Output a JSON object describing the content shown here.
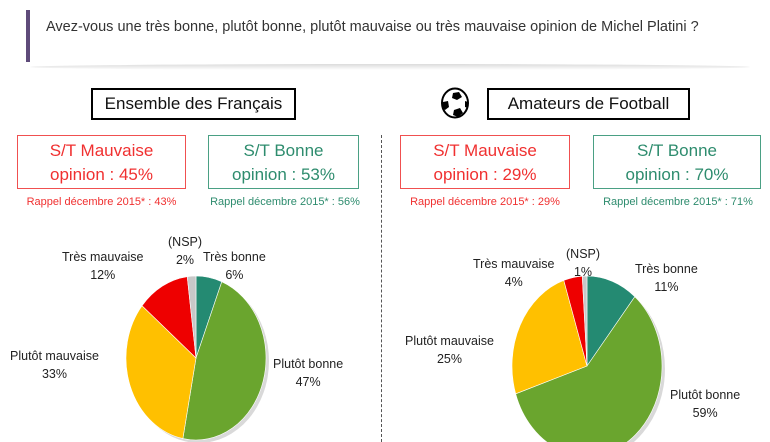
{
  "question": "Avez-vous une très bonne, plutôt bonne, plutôt mauvaise ou très mauvaise opinion de Michel Platini ?",
  "icons": {
    "football": "soccer-ball-icon"
  },
  "colors": {
    "tres_bonne": "#248a72",
    "plutot_bonne": "#6aa52e",
    "plutot_mauvaise": "#ffc000",
    "tres_mauvaise": "#ee0000",
    "nsp": "#c8c8c8"
  },
  "panels": [
    {
      "title": "Ensemble des Français",
      "mauvaise_line1": "S/T Mauvaise",
      "mauvaise_line2": "opinion : 45%",
      "mauvaise_rappel": "Rappel décembre 2015* : 43%",
      "bonne_line1": "S/T Bonne",
      "bonne_line2": "opinion : 53%",
      "bonne_rappel": "Rappel décembre 2015* : 56%"
    },
    {
      "title": "Amateurs de Football",
      "mauvaise_line1": "S/T Mauvaise",
      "mauvaise_line2": "opinion : 29%",
      "mauvaise_rappel": "Rappel décembre 2015* : 29%",
      "bonne_line1": "S/T Bonne",
      "bonne_line2": "opinion : 70%",
      "bonne_rappel": "Rappel décembre 2015* : 71%"
    }
  ],
  "chart_data": [
    {
      "type": "pie",
      "title": "Ensemble des Français",
      "labels": [
        "Très bonne",
        "Plutôt bonne",
        "Plutôt mauvaise",
        "Très mauvaise",
        "(NSP)"
      ],
      "values": [
        6,
        47,
        33,
        12,
        2
      ],
      "value_labels": [
        "6%",
        "47%",
        "33%",
        "12%",
        "2%"
      ]
    },
    {
      "type": "pie",
      "title": "Amateurs de Football",
      "labels": [
        "Très bonne",
        "Plutôt bonne",
        "Plutôt mauvaise",
        "Très mauvaise",
        "(NSP)"
      ],
      "values": [
        11,
        59,
        25,
        4,
        1
      ],
      "value_labels": [
        "11%",
        "59%",
        "25%",
        "4%",
        "1%"
      ]
    }
  ]
}
